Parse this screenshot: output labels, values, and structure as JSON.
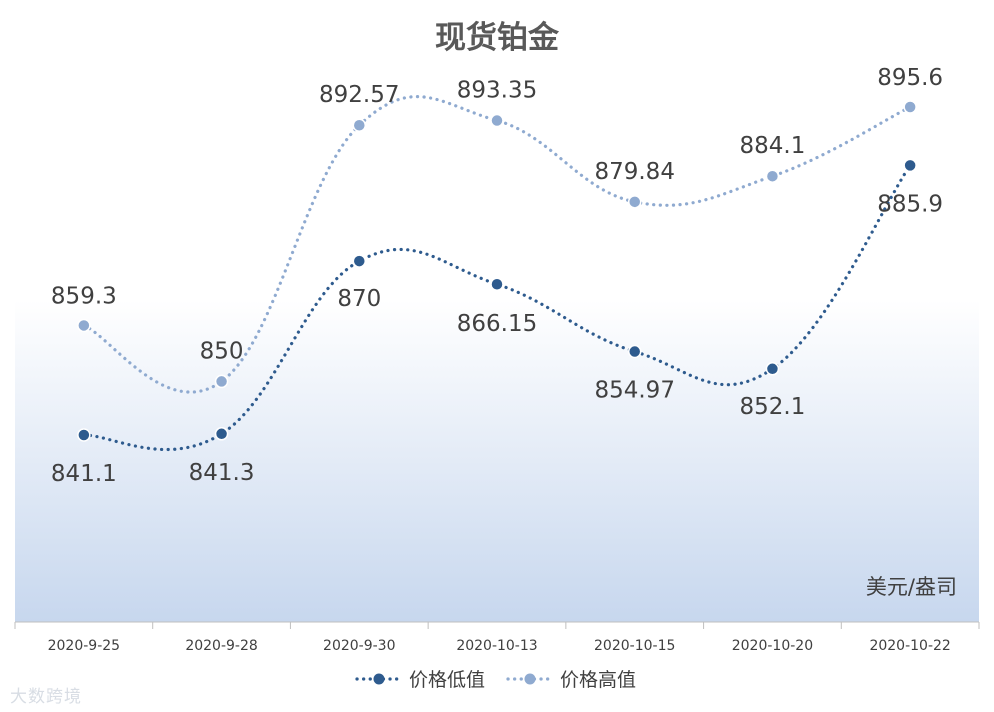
{
  "chart_data": {
    "type": "line",
    "title": "现货铂金",
    "unit": "美元/盎司",
    "categories": [
      "2020-9-25",
      "2020-9-28",
      "2020-9-30",
      "2020-10-13",
      "2020-10-15",
      "2020-10-20",
      "2020-10-22"
    ],
    "series": [
      {
        "name": "价格低值",
        "values": [
          841.1,
          841.3,
          870,
          866.15,
          854.97,
          852.1,
          885.9
        ],
        "labels": [
          "841.1",
          "841.3",
          "870",
          "866.15",
          "854.97",
          "852.1",
          "885.9"
        ],
        "color": "#2e5b8e"
      },
      {
        "name": "价格高值",
        "values": [
          859.3,
          850,
          892.57,
          893.35,
          879.84,
          884.1,
          895.6
        ],
        "labels": [
          "859.3",
          "850",
          "892.57",
          "893.35",
          "879.84",
          "884.1",
          "895.6"
        ],
        "color": "#8faad0"
      }
    ],
    "high_low_lines": true,
    "legend_position": "bottom",
    "grid": false
  },
  "watermark": "大数跨境"
}
